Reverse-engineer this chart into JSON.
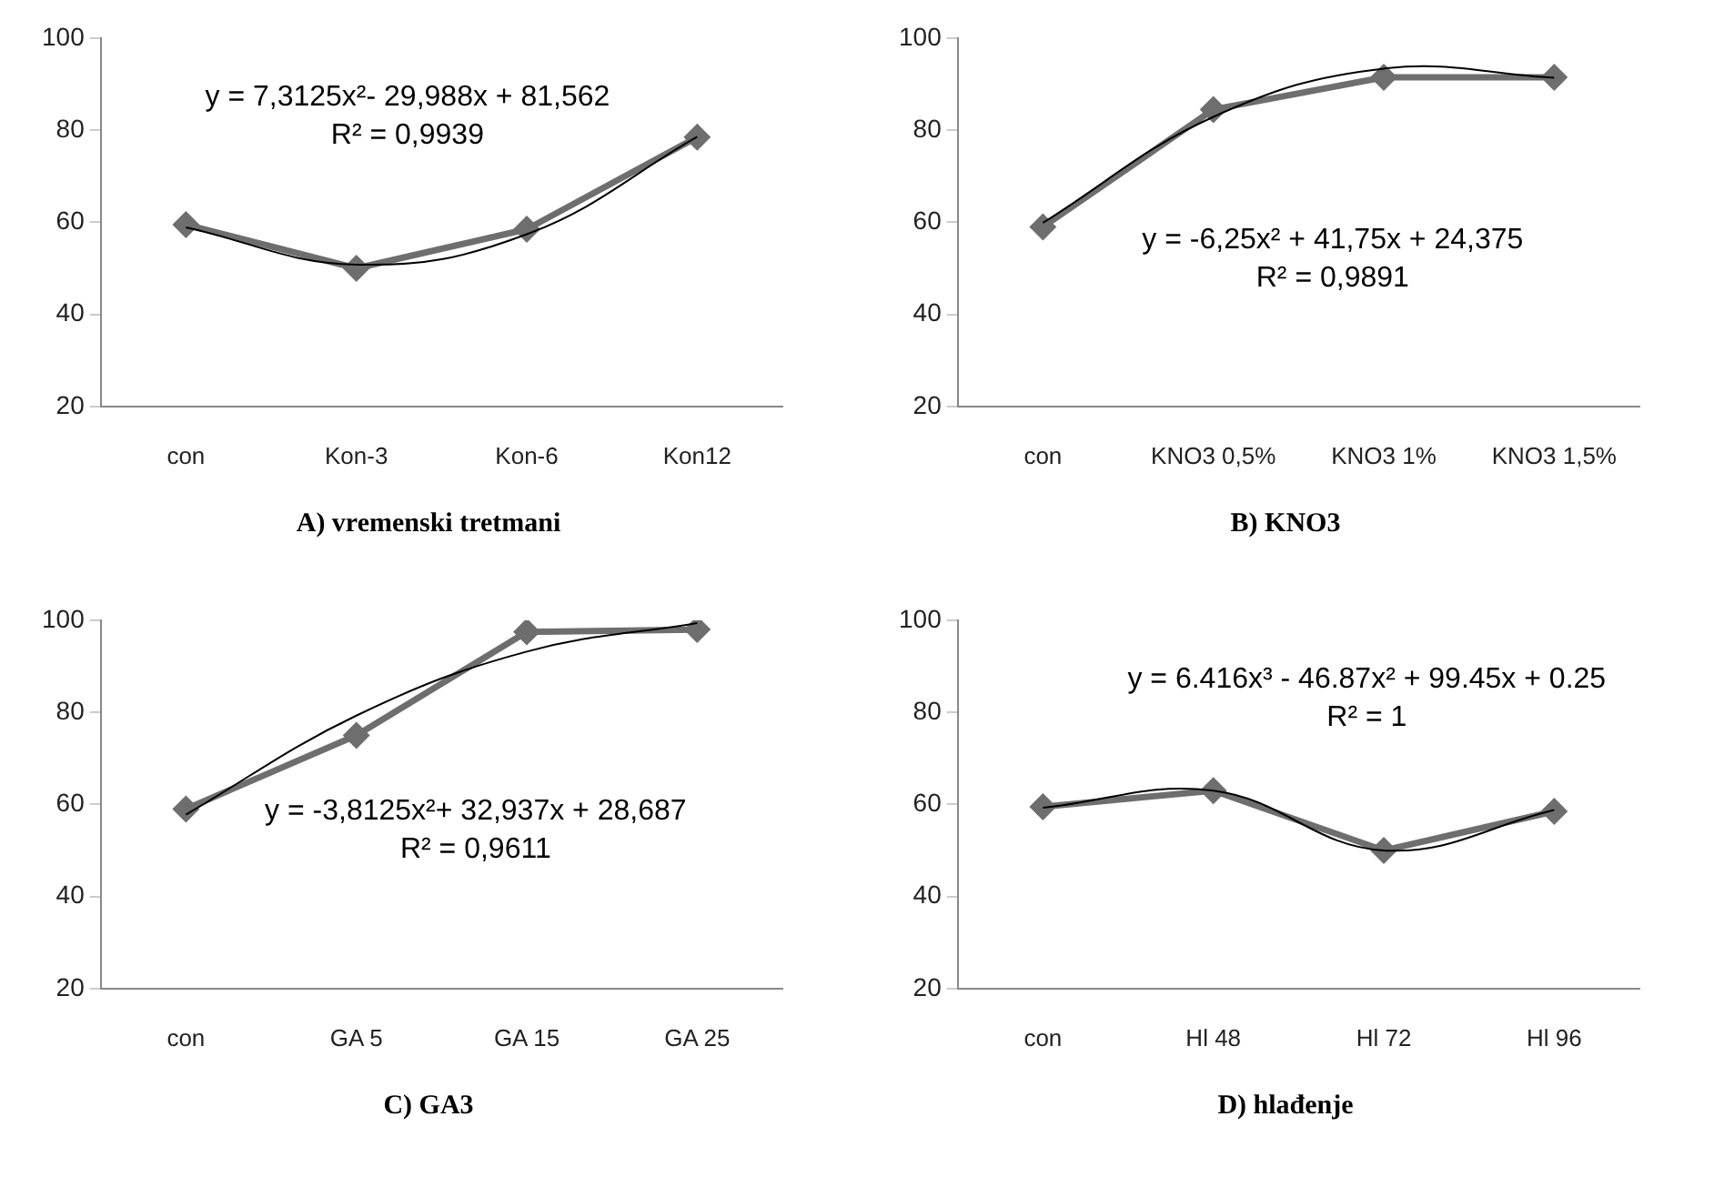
{
  "chart_data": [
    {
      "type": "line",
      "title": "A) vremenski tretmani",
      "categories": [
        "con",
        "Kon-3",
        "Kon-6",
        "Kon12"
      ],
      "ylim": [
        20,
        100
      ],
      "yticks": [
        20,
        40,
        60,
        80,
        100
      ],
      "grid": false,
      "legend": false,
      "series": [
        {
          "color": "#6e6e6e",
          "marker": "diamond",
          "values": [
            59.5,
            50,
            58.5,
            78.5
          ]
        },
        {
          "type": "line",
          "color": "#000000",
          "marker": "none",
          "values": [
            58.9,
            50.8,
            57.4,
            78.6
          ]
        }
      ],
      "annotations": [
        "y = 7,3125x²- 29,988x + 81,562",
        "R² = 0,9939"
      ]
    },
    {
      "type": "line",
      "title": "B) KNO3",
      "categories": [
        "con",
        "KNO3 0,5%",
        "KNO3 1%",
        "KNO3 1,5%"
      ],
      "ylim": [
        20,
        100
      ],
      "yticks": [
        20,
        40,
        60,
        80,
        100
      ],
      "grid": false,
      "legend": false,
      "series": [
        {
          "color": "#6e6e6e",
          "marker": "diamond",
          "values": [
            59,
            84.5,
            91.5,
            91.5
          ]
        },
        {
          "type": "line",
          "color": "#000000",
          "marker": "none",
          "values": [
            59.9,
            82.9,
            93.4,
            91.4
          ]
        }
      ],
      "annotations": [
        "y = -6,25x² + 41,75x + 24,375",
        "R² = 0,9891"
      ]
    },
    {
      "type": "line",
      "title": "C) GA3",
      "categories": [
        "con",
        "GA 5",
        "GA 15",
        "GA 25"
      ],
      "ylim": [
        20,
        100
      ],
      "yticks": [
        20,
        40,
        60,
        80,
        100
      ],
      "grid": false,
      "legend": false,
      "series": [
        {
          "color": "#6e6e6e",
          "marker": "diamond",
          "values": [
            59,
            75,
            97.5,
            98
          ]
        },
        {
          "type": "line",
          "color": "#000000",
          "marker": "none",
          "values": [
            57.8,
            79.3,
            93.2,
            99.4
          ]
        }
      ],
      "annotations": [
        "y = -3,8125x²+ 32,937x + 28,687",
        "R² = 0,9611"
      ]
    },
    {
      "type": "line",
      "title": "D) hlađenje",
      "categories": [
        "con",
        "Hl 48",
        "Hl 72",
        "Hl 96"
      ],
      "ylim": [
        20,
        100
      ],
      "yticks": [
        20,
        40,
        60,
        80,
        100
      ],
      "grid": false,
      "legend": false,
      "series": [
        {
          "color": "#6e6e6e",
          "marker": "diamond",
          "values": [
            59.5,
            63,
            50,
            58.5
          ]
        },
        {
          "type": "line",
          "color": "#000000",
          "marker": "none",
          "values": [
            59.3,
            63.0,
            50.0,
            58.8
          ]
        }
      ],
      "annotations": [
        "y = 6.416x³ - 46.87x² + 99.45x + 0.25",
        "R² = 1"
      ]
    }
  ]
}
